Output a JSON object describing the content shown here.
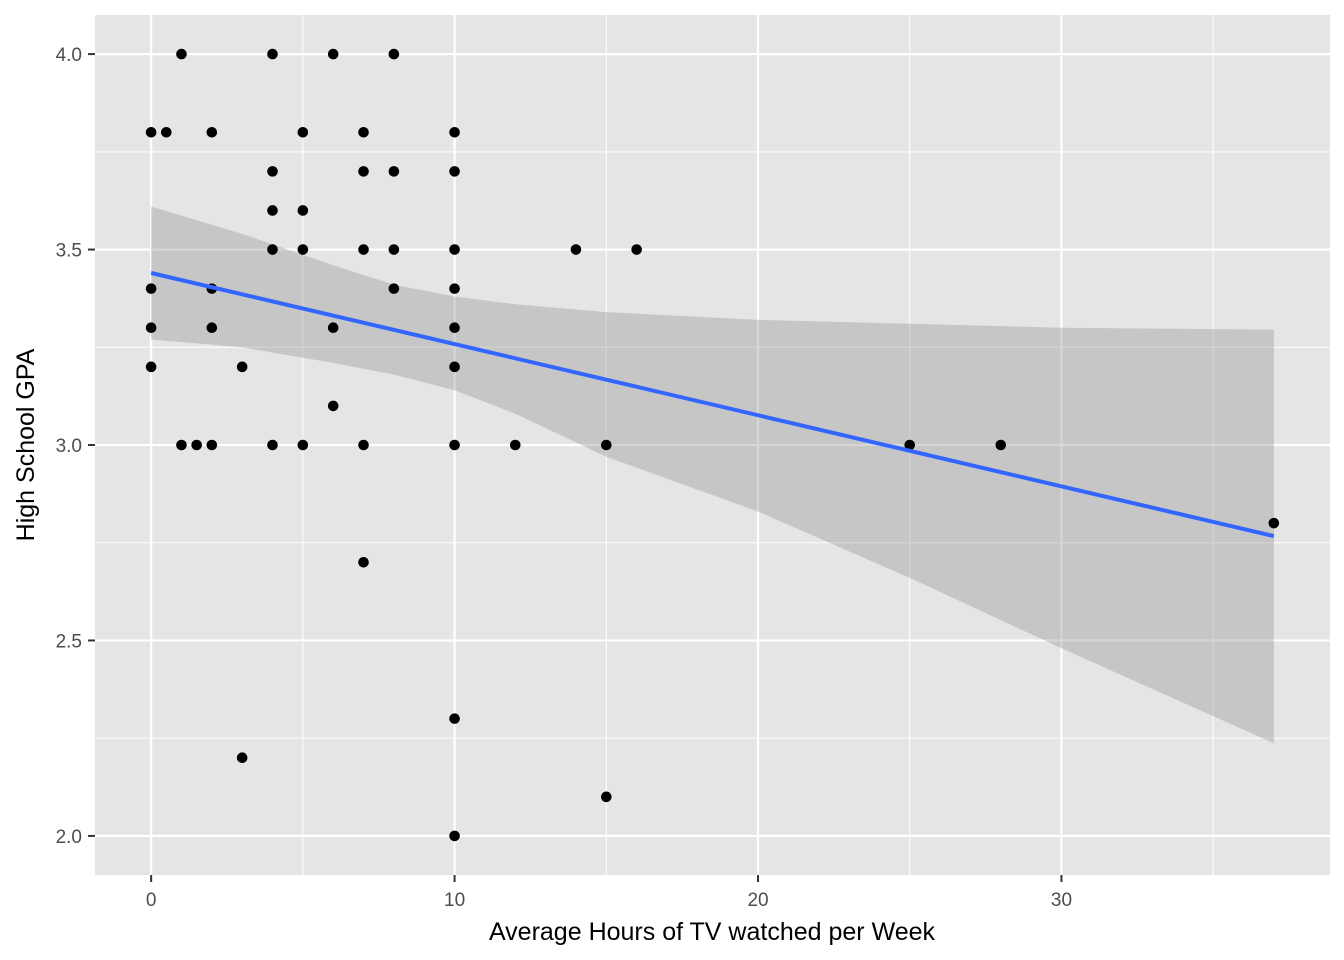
{
  "chart_data": {
    "type": "scatter",
    "title": "",
    "xlabel": "Average Hours of TV watched per Week",
    "ylabel": "High School GPA",
    "xlim": [
      -1.85,
      38.85
    ],
    "ylim": [
      1.9,
      4.1
    ],
    "xticks": [
      0,
      10,
      20,
      30
    ],
    "xtick_labels": [
      "0",
      "10",
      "20",
      "30"
    ],
    "yticks": [
      2.0,
      2.5,
      3.0,
      3.5,
      4.0
    ],
    "ytick_labels": [
      "2.0",
      "2.5",
      "3.0",
      "3.5",
      "4.0"
    ],
    "grid": true,
    "legend": "none",
    "colors": {
      "panel": "#e5e5e5",
      "grid": "#ffffff",
      "point": "#000000",
      "line": "#3366ff",
      "ribbon": "#999999"
    },
    "points": [
      {
        "x": 1,
        "y": 4.0
      },
      {
        "x": 4,
        "y": 4.0
      },
      {
        "x": 6,
        "y": 4.0
      },
      {
        "x": 8,
        "y": 4.0
      },
      {
        "x": 0,
        "y": 3.8
      },
      {
        "x": 0.5,
        "y": 3.8
      },
      {
        "x": 2,
        "y": 3.8
      },
      {
        "x": 5,
        "y": 3.8
      },
      {
        "x": 7,
        "y": 3.8
      },
      {
        "x": 10,
        "y": 3.8
      },
      {
        "x": 4,
        "y": 3.7
      },
      {
        "x": 7,
        "y": 3.7
      },
      {
        "x": 8,
        "y": 3.7
      },
      {
        "x": 10,
        "y": 3.7
      },
      {
        "x": 4,
        "y": 3.6
      },
      {
        "x": 5,
        "y": 3.6
      },
      {
        "x": 4,
        "y": 3.5
      },
      {
        "x": 5,
        "y": 3.5
      },
      {
        "x": 7,
        "y": 3.5
      },
      {
        "x": 8,
        "y": 3.5
      },
      {
        "x": 10,
        "y": 3.5
      },
      {
        "x": 14,
        "y": 3.5
      },
      {
        "x": 16,
        "y": 3.5
      },
      {
        "x": 0,
        "y": 3.4
      },
      {
        "x": 2,
        "y": 3.4
      },
      {
        "x": 8,
        "y": 3.4
      },
      {
        "x": 10,
        "y": 3.4
      },
      {
        "x": 0,
        "y": 3.3
      },
      {
        "x": 2,
        "y": 3.3
      },
      {
        "x": 6,
        "y": 3.3
      },
      {
        "x": 10,
        "y": 3.3
      },
      {
        "x": 0,
        "y": 3.2
      },
      {
        "x": 3,
        "y": 3.2
      },
      {
        "x": 10,
        "y": 3.2
      },
      {
        "x": 6,
        "y": 3.1
      },
      {
        "x": 1,
        "y": 3.0
      },
      {
        "x": 1.5,
        "y": 3.0
      },
      {
        "x": 2,
        "y": 3.0
      },
      {
        "x": 4,
        "y": 3.0
      },
      {
        "x": 5,
        "y": 3.0
      },
      {
        "x": 7,
        "y": 3.0
      },
      {
        "x": 10,
        "y": 3.0
      },
      {
        "x": 12,
        "y": 3.0
      },
      {
        "x": 15,
        "y": 3.0
      },
      {
        "x": 25,
        "y": 3.0
      },
      {
        "x": 28,
        "y": 3.0
      },
      {
        "x": 37,
        "y": 2.8
      },
      {
        "x": 7,
        "y": 2.7
      },
      {
        "x": 10,
        "y": 2.3
      },
      {
        "x": 3,
        "y": 2.2
      },
      {
        "x": 15,
        "y": 2.1
      },
      {
        "x": 10,
        "y": 2.0
      }
    ],
    "smooth": {
      "method": "lm",
      "x": [
        0,
        37
      ],
      "y": [
        3.44,
        2.767
      ],
      "band": {
        "x": [
          0,
          3,
          6,
          8,
          10,
          12,
          15,
          20,
          25,
          30,
          37
        ],
        "lower": [
          3.27,
          3.25,
          3.21,
          3.18,
          3.14,
          3.08,
          2.97,
          2.83,
          2.66,
          2.48,
          2.237
        ],
        "upper": [
          3.61,
          3.54,
          3.46,
          3.41,
          3.38,
          3.36,
          3.34,
          3.32,
          3.31,
          3.3,
          3.295
        ]
      }
    }
  }
}
